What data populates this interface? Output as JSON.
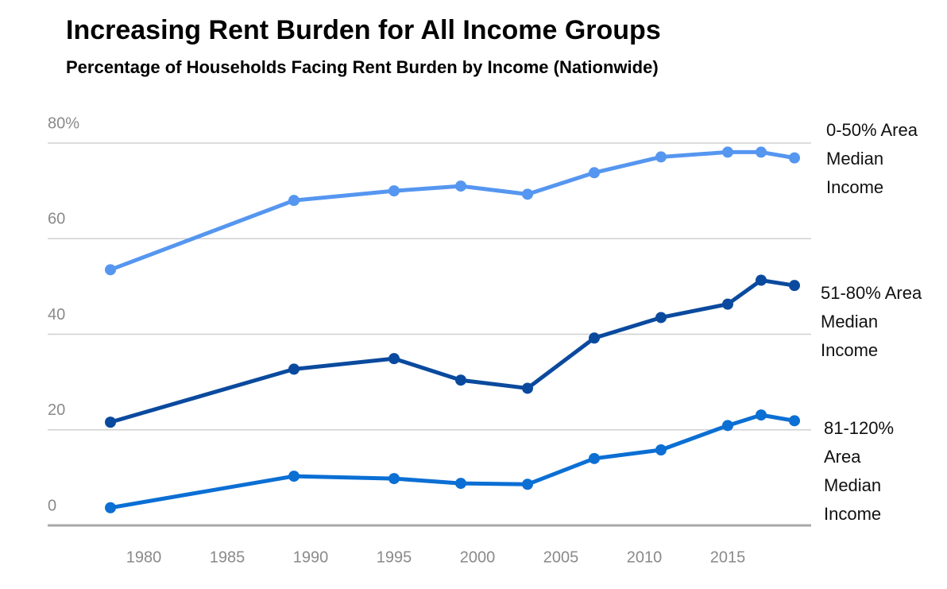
{
  "chart_data": {
    "type": "line",
    "title": "Increasing Rent Burden for All Income Groups",
    "subtitle": "Percentage of Households Facing Rent Burden by Income (Nationwide)",
    "x": [
      1978,
      1989,
      1995,
      1999,
      2003,
      2007,
      2011,
      2015,
      2017,
      2019
    ],
    "series": [
      {
        "name": "0-50% Area Median Income",
        "color": "#5596f0",
        "values": [
          53.5,
          68,
          70,
          71,
          69.3,
          73.8,
          77.1,
          78.1,
          78.1,
          76.9
        ]
      },
      {
        "name": "51-80% Area Median Income",
        "color": "#0a4a9e",
        "values": [
          21.6,
          32.7,
          34.9,
          30.4,
          28.7,
          39.2,
          43.5,
          46.3,
          51.3,
          50.2
        ]
      },
      {
        "name": "81-120% Area Median Income",
        "color": "#0b6fd4",
        "values": [
          3.7,
          10.3,
          9.8,
          8.8,
          8.6,
          14,
          15.8,
          20.9,
          23.1,
          21.9
        ]
      }
    ],
    "xlim": [
      1974,
      2020
    ],
    "xticks": [
      1980,
      1985,
      1990,
      1995,
      2000,
      2005,
      2010,
      2015
    ],
    "ylim": [
      0,
      80
    ],
    "yticks": [
      0,
      20,
      40,
      60,
      {
        "value": 80,
        "label": "80%"
      }
    ],
    "grid": true
  }
}
